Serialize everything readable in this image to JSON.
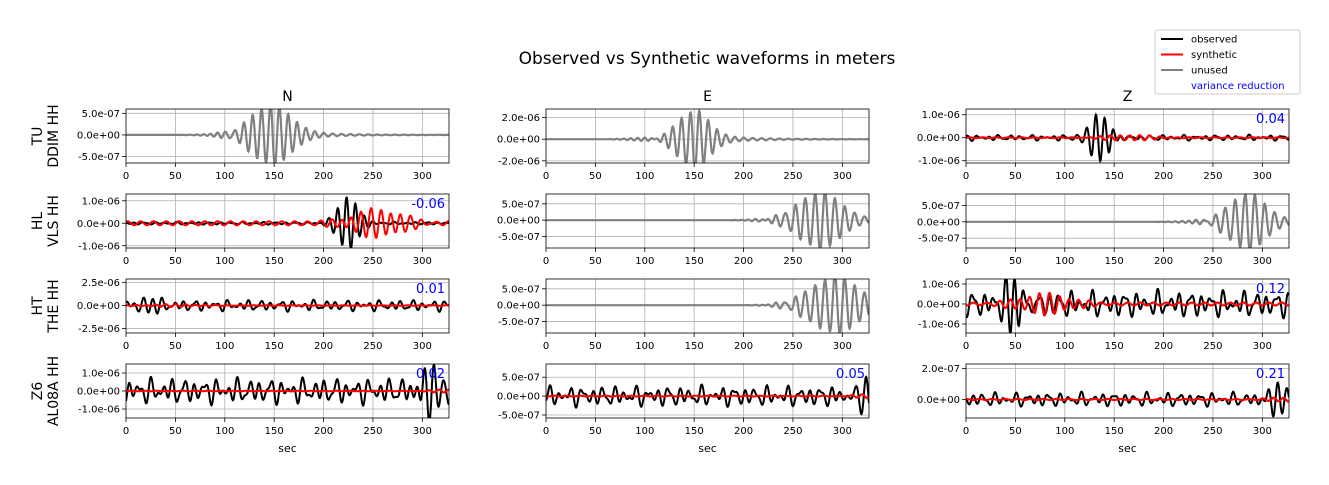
{
  "figure": {
    "title": "Observed vs Synthetic waveforms in meters",
    "columns": [
      "N",
      "E",
      "Z"
    ],
    "xlabel": "sec",
    "x_ticks": [
      0,
      50,
      100,
      150,
      200,
      250,
      300
    ],
    "xlim": [
      0,
      327
    ],
    "colors": {
      "observed": "#000000",
      "synthetic": "#ff0000",
      "unused": "#808080",
      "variance": "#0000ff",
      "grid": "#b0b0b0"
    }
  },
  "legend": {
    "placement": "top-right",
    "entries": [
      {
        "label": "observed",
        "color": "#000000",
        "line": true
      },
      {
        "label": "synthetic",
        "color": "#ff0000",
        "line": true
      },
      {
        "label": "unused",
        "color": "#808080",
        "line": true
      },
      {
        "label": "variance reduction",
        "color": "#0000ff",
        "line": false
      }
    ]
  },
  "chart_data": {
    "type": "line",
    "title": "Observed vs Synthetic waveforms in meters",
    "xlabel": "sec",
    "grid": true,
    "stations": [
      {
        "label_line1": "TU",
        "label_line2": "DDIM HH",
        "panels": [
          {
            "component": "N",
            "used": false,
            "ylim": [
              -6.5e-07,
              6e-07
            ],
            "y_ticks": [
              {
                "v": 5e-07,
                "label": "5.0e-07"
              },
              {
                "v": 0,
                "label": "0.0e+00"
              },
              {
                "v": -5e-07,
                "label": "-5.0e-07"
              }
            ],
            "variance_reduction": "",
            "obs": {
              "center": 145,
              "width": 28,
              "amp": 6.5e-07,
              "period": 9
            }
          },
          {
            "component": "E",
            "used": false,
            "ylim": [
              -2.2e-06,
              2.8e-06
            ],
            "y_ticks": [
              {
                "v": 2e-06,
                "label": "2.0e-06"
              },
              {
                "v": 0,
                "label": "0.0e+00"
              },
              {
                "v": -2e-06,
                "label": "-2.0e-06"
              }
            ],
            "variance_reduction": "",
            "obs": {
              "center": 148,
              "width": 22,
              "amp": 2.5e-06,
              "period": 9
            }
          },
          {
            "component": "Z",
            "used": true,
            "ylim": [
              -1.1e-06,
              1.25e-06
            ],
            "y_ticks": [
              {
                "v": 1e-06,
                "label": "1.0e-06"
              },
              {
                "v": 0,
                "label": "0.0e+00"
              },
              {
                "v": -1e-06,
                "label": "-1.0e-06"
              }
            ],
            "variance_reduction": "0.04",
            "obs": {
              "amp": 1e-06,
              "noise": 0.12,
              "burst": 135,
              "seed": 3
            },
            "syn_amp": 1.2e-07
          }
        ]
      },
      {
        "label_line1": "HL",
        "label_line2": "VLS HH",
        "panels": [
          {
            "component": "N",
            "used": true,
            "ylim": [
              -1.1e-06,
              1.3e-06
            ],
            "y_ticks": [
              {
                "v": 1e-06,
                "label": "1.0e-06"
              },
              {
                "v": 0,
                "label": "0.0e+00"
              },
              {
                "v": -1e-06,
                "label": "-1.0e-06"
              }
            ],
            "variance_reduction": "-0.06",
            "obs": {
              "amp": 1.2e-06,
              "noise": 0.05,
              "burst": 225,
              "seed": 7
            },
            "syn_amp": 6e-07
          },
          {
            "component": "E",
            "used": false,
            "ylim": [
              -8.5e-07,
              8e-07
            ],
            "y_ticks": [
              {
                "v": 5e-07,
                "label": "5.0e-07"
              },
              {
                "v": 0,
                "label": "0.0e+00"
              },
              {
                "v": -5e-07,
                "label": "-5.0e-07"
              }
            ],
            "variance_reduction": "",
            "obs": {
              "center": 275,
              "width": 30,
              "amp": 8e-07,
              "period": 10
            }
          },
          {
            "component": "Z",
            "used": false,
            "ylim": [
              -8e-07,
              8.5e-07
            ],
            "y_ticks": [
              {
                "v": 5e-07,
                "label": "5.0e-07"
              },
              {
                "v": 0,
                "label": "0.0e+00"
              },
              {
                "v": -5e-07,
                "label": "-5.0e-07"
              }
            ],
            "variance_reduction": "",
            "obs": {
              "center": 283,
              "width": 26,
              "amp": 8e-07,
              "period": 10
            }
          }
        ]
      },
      {
        "label_line1": "HT",
        "label_line2": "THE HH",
        "panels": [
          {
            "component": "N",
            "used": true,
            "ylim": [
              -3e-06,
              2.9e-06
            ],
            "y_ticks": [
              {
                "v": 2.5e-06,
                "label": "2.5e-06"
              },
              {
                "v": 0,
                "label": "0.0e+00"
              },
              {
                "v": -2.5e-06,
                "label": "-2.5e-06"
              }
            ],
            "variance_reduction": "0.01",
            "obs": {
              "amp": 1e-06,
              "noise": 0.6,
              "burst": 18,
              "seed": 11
            },
            "syn_amp": 1.5e-07
          },
          {
            "component": "E",
            "used": false,
            "ylim": [
              -8.5e-07,
              8e-07
            ],
            "y_ticks": [
              {
                "v": 5e-07,
                "label": "5.0e-07"
              },
              {
                "v": 0,
                "label": "0.0e+00"
              },
              {
                "v": -5e-07,
                "label": "-5.0e-07"
              }
            ],
            "variance_reduction": "",
            "obs": {
              "center": 290,
              "width": 34,
              "amp": 8e-07,
              "period": 10
            }
          },
          {
            "component": "Z",
            "used": true,
            "ylim": [
              -1.45e-06,
              1.25e-06
            ],
            "y_ticks": [
              {
                "v": 1e-06,
                "label": "1.0e-06"
              },
              {
                "v": 0,
                "label": "0.0e+00"
              },
              {
                "v": -1e-06,
                "label": "-1.0e-06"
              }
            ],
            "variance_reduction": "0.12",
            "obs": {
              "amp": 1.2e-06,
              "noise": 0.55,
              "burst": 50,
              "seed": 19
            },
            "syn_amp": 5e-07
          }
        ]
      },
      {
        "label_line1": "Z6",
        "label_line2": "AL08A HH",
        "panels": [
          {
            "component": "N",
            "used": true,
            "ylim": [
              -1.5e-06,
              1.5e-06
            ],
            "y_ticks": [
              {
                "v": 1e-06,
                "label": "1.0e-06"
              },
              {
                "v": 0,
                "label": "0.0e+00"
              },
              {
                "v": -1e-06,
                "label": "-1.0e-06"
              }
            ],
            "variance_reduction": "0.02",
            "obs": {
              "amp": 1.2e-06,
              "noise": 0.6,
              "burst": 310,
              "seed": 23
            },
            "syn_amp": 1e-07
          },
          {
            "component": "E",
            "used": true,
            "ylim": [
              -5.8e-07,
              8.5e-07
            ],
            "y_ticks": [
              {
                "v": 5e-07,
                "label": "5.0e-07"
              },
              {
                "v": 0,
                "label": "0.0e+00"
              },
              {
                "v": -5e-07,
                "label": "-5.0e-07"
              }
            ],
            "variance_reduction": "0.05",
            "obs": {
              "amp": 4.5e-07,
              "noise": 0.6,
              "burst": 320,
              "seed": 29
            },
            "syn_amp": 8e-08
          },
          {
            "component": "Z",
            "used": true,
            "ylim": [
              -1.2e-07,
              2.3e-07
            ],
            "y_ticks": [
              {
                "v": 2e-07,
                "label": "2.0e-07"
              },
              {
                "v": 0,
                "label": "0.0e+00"
              }
            ],
            "variance_reduction": "0.21",
            "obs": {
              "amp": 9e-08,
              "noise": 0.5,
              "burst": 318,
              "seed": 31
            },
            "syn_amp": 2.5e-08
          }
        ]
      }
    ]
  }
}
